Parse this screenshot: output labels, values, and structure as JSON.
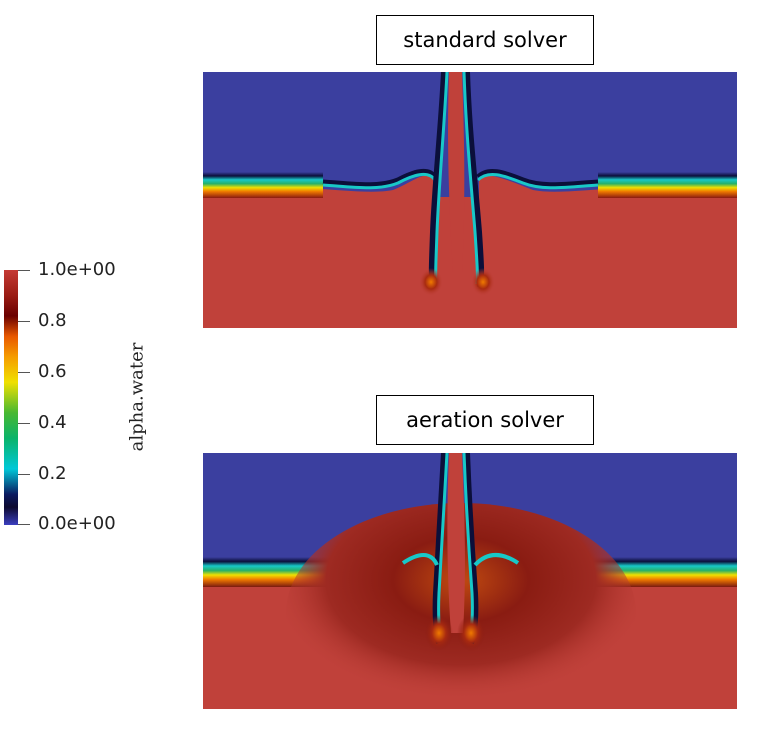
{
  "panels": [
    {
      "title": "standard solver"
    },
    {
      "title": "aeration solver"
    }
  ],
  "colorbar": {
    "title": "alpha.water",
    "ticks": [
      "1.0e+00",
      "0.8",
      "0.6",
      "0.4",
      "0.2",
      "0.0e+00"
    ],
    "range": [
      0,
      1
    ],
    "colormap": [
      "#3b3fbf",
      "#0b1a60",
      "#00c8d8",
      "#48b832",
      "#f0e000",
      "#e85800",
      "#6a0000",
      "#c53a34"
    ]
  },
  "colors": {
    "air": "#3b3f9f",
    "water": "#c0413a",
    "interface_dark": "#0b0f3a",
    "interface_cyan": "#18c8c8",
    "interface_green": "#26b06a",
    "interface_orange": "#f07a00"
  }
}
